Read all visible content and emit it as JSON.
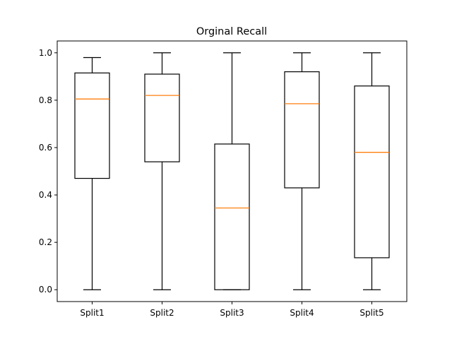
{
  "chart_data": {
    "type": "boxplot",
    "title": "Orginal Recall",
    "xlabel": "",
    "ylabel": "",
    "ylim": [
      -0.05,
      1.05
    ],
    "yticks": [
      0.0,
      0.2,
      0.4,
      0.6,
      0.8,
      1.0
    ],
    "ytick_labels": [
      "0.0",
      "0.2",
      "0.4",
      "0.6",
      "0.8",
      "1.0"
    ],
    "grid": false,
    "colors": {
      "box": "#000000",
      "median": "#ff7f0e"
    },
    "categories": [
      "Split1",
      "Split2",
      "Split3",
      "Split4",
      "Split5"
    ],
    "boxes": [
      {
        "whislo": 0.0,
        "q1": 0.47,
        "med": 0.805,
        "q3": 0.915,
        "whishi": 0.98
      },
      {
        "whislo": 0.0,
        "q1": 0.54,
        "med": 0.82,
        "q3": 0.91,
        "whishi": 1.0
      },
      {
        "whislo": 0.0,
        "q1": 0.0,
        "med": 0.345,
        "q3": 0.615,
        "whishi": 1.0
      },
      {
        "whislo": 0.0,
        "q1": 0.43,
        "med": 0.785,
        "q3": 0.92,
        "whishi": 1.0
      },
      {
        "whislo": 0.0,
        "q1": 0.135,
        "med": 0.58,
        "q3": 0.86,
        "whishi": 1.0
      }
    ]
  }
}
